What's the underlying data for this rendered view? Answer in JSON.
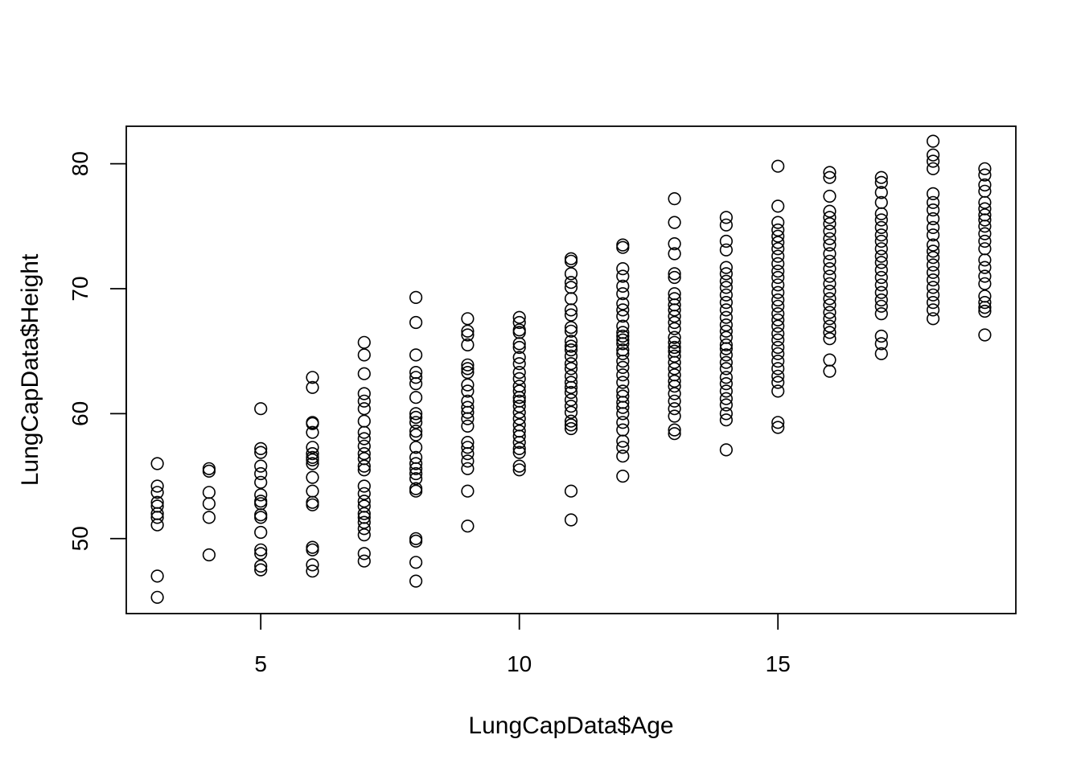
{
  "chart_data": {
    "type": "scatter",
    "title": "",
    "xlabel": "LungCapData$Age",
    "ylabel": "LungCapData$Height",
    "xlim": [
      2.4,
      19.6
    ],
    "ylim": [
      44,
      83
    ],
    "xticks": [
      5,
      10,
      15
    ],
    "yticks": [
      50,
      60,
      70,
      80
    ],
    "grid": false,
    "legend": "none",
    "marker": "open-circle",
    "points": [
      [
        3,
        56.0
      ],
      [
        3,
        54.2
      ],
      [
        3,
        53.7
      ],
      [
        3,
        52.9
      ],
      [
        3,
        52.6
      ],
      [
        3,
        52.0
      ],
      [
        3,
        51.7
      ],
      [
        3,
        51.1
      ],
      [
        3,
        47.0
      ],
      [
        3,
        45.3
      ],
      [
        4,
        55.6
      ],
      [
        4,
        55.4
      ],
      [
        4,
        53.7
      ],
      [
        4,
        52.8
      ],
      [
        4,
        51.7
      ],
      [
        4,
        48.7
      ],
      [
        5,
        60.4
      ],
      [
        5,
        57.2
      ],
      [
        5,
        56.9
      ],
      [
        5,
        55.8
      ],
      [
        5,
        55.2
      ],
      [
        5,
        54.5
      ],
      [
        5,
        53.5
      ],
      [
        5,
        53.0
      ],
      [
        5,
        52.8
      ],
      [
        5,
        51.9
      ],
      [
        5,
        51.7
      ],
      [
        5,
        50.5
      ],
      [
        5,
        49.1
      ],
      [
        5,
        48.8
      ],
      [
        5,
        47.8
      ],
      [
        5,
        47.5
      ],
      [
        6,
        62.9
      ],
      [
        6,
        62.1
      ],
      [
        6,
        59.3
      ],
      [
        6,
        59.2
      ],
      [
        6,
        58.5
      ],
      [
        6,
        57.3
      ],
      [
        6,
        56.8
      ],
      [
        6,
        56.5
      ],
      [
        6,
        56.3
      ],
      [
        6,
        56.0
      ],
      [
        6,
        54.9
      ],
      [
        6,
        53.8
      ],
      [
        6,
        52.9
      ],
      [
        6,
        52.7
      ],
      [
        6,
        49.3
      ],
      [
        6,
        49.1
      ],
      [
        6,
        47.9
      ],
      [
        6,
        47.4
      ],
      [
        7,
        65.7
      ],
      [
        7,
        64.7
      ],
      [
        7,
        63.2
      ],
      [
        7,
        61.6
      ],
      [
        7,
        61.0
      ],
      [
        7,
        60.4
      ],
      [
        7,
        59.4
      ],
      [
        7,
        58.5
      ],
      [
        7,
        58.0
      ],
      [
        7,
        57.4
      ],
      [
        7,
        56.8
      ],
      [
        7,
        56.4
      ],
      [
        7,
        55.8
      ],
      [
        7,
        55.5
      ],
      [
        7,
        54.2
      ],
      [
        7,
        53.6
      ],
      [
        7,
        53.0
      ],
      [
        7,
        52.6
      ],
      [
        7,
        52.0
      ],
      [
        7,
        51.7
      ],
      [
        7,
        51.3
      ],
      [
        7,
        50.8
      ],
      [
        7,
        50.3
      ],
      [
        7,
        48.8
      ],
      [
        7,
        48.2
      ],
      [
        8,
        69.3
      ],
      [
        8,
        67.3
      ],
      [
        8,
        64.7
      ],
      [
        8,
        63.3
      ],
      [
        8,
        62.9
      ],
      [
        8,
        62.4
      ],
      [
        8,
        61.3
      ],
      [
        8,
        60.0
      ],
      [
        8,
        59.7
      ],
      [
        8,
        59.3
      ],
      [
        8,
        58.6
      ],
      [
        8,
        58.3
      ],
      [
        8,
        57.3
      ],
      [
        8,
        56.5
      ],
      [
        8,
        56.0
      ],
      [
        8,
        55.6
      ],
      [
        8,
        55.2
      ],
      [
        8,
        54.8
      ],
      [
        8,
        54.0
      ],
      [
        8,
        53.8
      ],
      [
        8,
        50.0
      ],
      [
        8,
        49.8
      ],
      [
        8,
        48.1
      ],
      [
        8,
        46.6
      ],
      [
        9,
        67.6
      ],
      [
        9,
        66.6
      ],
      [
        9,
        66.3
      ],
      [
        9,
        65.5
      ],
      [
        9,
        63.9
      ],
      [
        9,
        63.6
      ],
      [
        9,
        63.3
      ],
      [
        9,
        62.3
      ],
      [
        9,
        61.8
      ],
      [
        9,
        61.0
      ],
      [
        9,
        60.5
      ],
      [
        9,
        60.1
      ],
      [
        9,
        59.6
      ],
      [
        9,
        59.0
      ],
      [
        9,
        57.7
      ],
      [
        9,
        57.3
      ],
      [
        9,
        56.8
      ],
      [
        9,
        56.2
      ],
      [
        9,
        55.6
      ],
      [
        9,
        53.8
      ],
      [
        9,
        51.0
      ],
      [
        10,
        67.7
      ],
      [
        10,
        67.3
      ],
      [
        10,
        66.7
      ],
      [
        10,
        66.5
      ],
      [
        10,
        65.6
      ],
      [
        10,
        65.3
      ],
      [
        10,
        64.5
      ],
      [
        10,
        64.0
      ],
      [
        10,
        63.3
      ],
      [
        10,
        62.8
      ],
      [
        10,
        62.2
      ],
      [
        10,
        61.8
      ],
      [
        10,
        61.3
      ],
      [
        10,
        61.0
      ],
      [
        10,
        60.6
      ],
      [
        10,
        60.1
      ],
      [
        10,
        59.6
      ],
      [
        10,
        59.1
      ],
      [
        10,
        58.6
      ],
      [
        10,
        58.2
      ],
      [
        10,
        57.7
      ],
      [
        10,
        57.2
      ],
      [
        10,
        56.9
      ],
      [
        10,
        55.8
      ],
      [
        10,
        55.5
      ],
      [
        11,
        72.4
      ],
      [
        11,
        72.2
      ],
      [
        11,
        71.2
      ],
      [
        11,
        70.5
      ],
      [
        11,
        70.1
      ],
      [
        11,
        69.2
      ],
      [
        11,
        68.3
      ],
      [
        11,
        67.9
      ],
      [
        11,
        66.9
      ],
      [
        11,
        66.6
      ],
      [
        11,
        65.8
      ],
      [
        11,
        65.4
      ],
      [
        11,
        65.1
      ],
      [
        11,
        64.6
      ],
      [
        11,
        64.0
      ],
      [
        11,
        63.6
      ],
      [
        11,
        63.0
      ],
      [
        11,
        62.5
      ],
      [
        11,
        62.1
      ],
      [
        11,
        61.7
      ],
      [
        11,
        61.1
      ],
      [
        11,
        60.6
      ],
      [
        11,
        60.1
      ],
      [
        11,
        59.4
      ],
      [
        11,
        59.1
      ],
      [
        11,
        58.8
      ],
      [
        11,
        53.8
      ],
      [
        11,
        51.5
      ],
      [
        12,
        73.5
      ],
      [
        12,
        73.3
      ],
      [
        12,
        71.6
      ],
      [
        12,
        71.0
      ],
      [
        12,
        70.2
      ],
      [
        12,
        69.6
      ],
      [
        12,
        68.8
      ],
      [
        12,
        68.3
      ],
      [
        12,
        67.8
      ],
      [
        12,
        67.0
      ],
      [
        12,
        66.5
      ],
      [
        12,
        66.2
      ],
      [
        12,
        65.9
      ],
      [
        12,
        65.6
      ],
      [
        12,
        65.1
      ],
      [
        12,
        64.8
      ],
      [
        12,
        64.2
      ],
      [
        12,
        63.7
      ],
      [
        12,
        63.1
      ],
      [
        12,
        62.5
      ],
      [
        12,
        61.8
      ],
      [
        12,
        61.4
      ],
      [
        12,
        60.9
      ],
      [
        12,
        60.5
      ],
      [
        12,
        60.0
      ],
      [
        12,
        59.3
      ],
      [
        12,
        58.7
      ],
      [
        12,
        57.8
      ],
      [
        12,
        57.3
      ],
      [
        12,
        56.6
      ],
      [
        12,
        55.0
      ],
      [
        13,
        77.2
      ],
      [
        13,
        75.3
      ],
      [
        13,
        73.6
      ],
      [
        13,
        72.8
      ],
      [
        13,
        71.2
      ],
      [
        13,
        70.9
      ],
      [
        13,
        69.6
      ],
      [
        13,
        69.2
      ],
      [
        13,
        68.7
      ],
      [
        13,
        68.3
      ],
      [
        13,
        67.8
      ],
      [
        13,
        67.3
      ],
      [
        13,
        66.8
      ],
      [
        13,
        66.1
      ],
      [
        13,
        65.7
      ],
      [
        13,
        65.3
      ],
      [
        13,
        65.0
      ],
      [
        13,
        64.6
      ],
      [
        13,
        64.1
      ],
      [
        13,
        63.6
      ],
      [
        13,
        63.1
      ],
      [
        13,
        62.6
      ],
      [
        13,
        62.2
      ],
      [
        13,
        61.6
      ],
      [
        13,
        61.0
      ],
      [
        13,
        60.4
      ],
      [
        13,
        59.8
      ],
      [
        13,
        58.7
      ],
      [
        13,
        58.4
      ],
      [
        14,
        75.7
      ],
      [
        14,
        75.1
      ],
      [
        14,
        73.8
      ],
      [
        14,
        73.1
      ],
      [
        14,
        71.7
      ],
      [
        14,
        71.2
      ],
      [
        14,
        70.6
      ],
      [
        14,
        70.1
      ],
      [
        14,
        69.5
      ],
      [
        14,
        68.9
      ],
      [
        14,
        68.3
      ],
      [
        14,
        67.7
      ],
      [
        14,
        67.1
      ],
      [
        14,
        66.6
      ],
      [
        14,
        66.1
      ],
      [
        14,
        65.5
      ],
      [
        14,
        65.2
      ],
      [
        14,
        64.7
      ],
      [
        14,
        64.1
      ],
      [
        14,
        63.6
      ],
      [
        14,
        62.9
      ],
      [
        14,
        62.4
      ],
      [
        14,
        61.8
      ],
      [
        14,
        61.2
      ],
      [
        14,
        60.7
      ],
      [
        14,
        60.0
      ],
      [
        14,
        59.5
      ],
      [
        14,
        57.1
      ],
      [
        15,
        79.8
      ],
      [
        15,
        76.6
      ],
      [
        15,
        75.3
      ],
      [
        15,
        74.7
      ],
      [
        15,
        74.2
      ],
      [
        15,
        73.7
      ],
      [
        15,
        73.2
      ],
      [
        15,
        72.6
      ],
      [
        15,
        72.0
      ],
      [
        15,
        71.4
      ],
      [
        15,
        70.9
      ],
      [
        15,
        70.3
      ],
      [
        15,
        69.7
      ],
      [
        15,
        69.1
      ],
      [
        15,
        68.6
      ],
      [
        15,
        68.0
      ],
      [
        15,
        67.5
      ],
      [
        15,
        67.0
      ],
      [
        15,
        66.4
      ],
      [
        15,
        65.9
      ],
      [
        15,
        65.3
      ],
      [
        15,
        64.8
      ],
      [
        15,
        64.2
      ],
      [
        15,
        63.6
      ],
      [
        15,
        63.0
      ],
      [
        15,
        62.5
      ],
      [
        15,
        61.8
      ],
      [
        15,
        59.3
      ],
      [
        15,
        58.9
      ],
      [
        16,
        79.3
      ],
      [
        16,
        78.9
      ],
      [
        16,
        77.4
      ],
      [
        16,
        76.2
      ],
      [
        16,
        75.7
      ],
      [
        16,
        75.2
      ],
      [
        16,
        74.6
      ],
      [
        16,
        74.0
      ],
      [
        16,
        73.5
      ],
      [
        16,
        72.8
      ],
      [
        16,
        72.2
      ],
      [
        16,
        71.6
      ],
      [
        16,
        71.0
      ],
      [
        16,
        70.4
      ],
      [
        16,
        69.8
      ],
      [
        16,
        69.2
      ],
      [
        16,
        68.7
      ],
      [
        16,
        68.1
      ],
      [
        16,
        67.6
      ],
      [
        16,
        67.0
      ],
      [
        16,
        66.5
      ],
      [
        16,
        66.0
      ],
      [
        16,
        64.3
      ],
      [
        16,
        63.4
      ],
      [
        17,
        78.9
      ],
      [
        17,
        78.5
      ],
      [
        17,
        77.7
      ],
      [
        17,
        76.9
      ],
      [
        17,
        76.0
      ],
      [
        17,
        75.5
      ],
      [
        17,
        74.9
      ],
      [
        17,
        74.3
      ],
      [
        17,
        73.8
      ],
      [
        17,
        73.2
      ],
      [
        17,
        72.6
      ],
      [
        17,
        72.1
      ],
      [
        17,
        71.5
      ],
      [
        17,
        70.9
      ],
      [
        17,
        70.3
      ],
      [
        17,
        69.7
      ],
      [
        17,
        69.1
      ],
      [
        17,
        68.6
      ],
      [
        17,
        68.0
      ],
      [
        17,
        66.2
      ],
      [
        17,
        65.6
      ],
      [
        17,
        64.8
      ],
      [
        18,
        81.8
      ],
      [
        18,
        80.7
      ],
      [
        18,
        80.2
      ],
      [
        18,
        79.6
      ],
      [
        18,
        77.6
      ],
      [
        18,
        76.9
      ],
      [
        18,
        76.3
      ],
      [
        18,
        75.6
      ],
      [
        18,
        74.9
      ],
      [
        18,
        74.3
      ],
      [
        18,
        73.5
      ],
      [
        18,
        73.0
      ],
      [
        18,
        72.5
      ],
      [
        18,
        71.9
      ],
      [
        18,
        71.3
      ],
      [
        18,
        70.7
      ],
      [
        18,
        70.1
      ],
      [
        18,
        69.5
      ],
      [
        18,
        68.9
      ],
      [
        18,
        68.3
      ],
      [
        18,
        67.6
      ],
      [
        19,
        79.6
      ],
      [
        19,
        79.1
      ],
      [
        19,
        78.3
      ],
      [
        19,
        77.8
      ],
      [
        19,
        76.9
      ],
      [
        19,
        76.4
      ],
      [
        19,
        75.9
      ],
      [
        19,
        75.5
      ],
      [
        19,
        75.0
      ],
      [
        19,
        74.4
      ],
      [
        19,
        73.8
      ],
      [
        19,
        73.2
      ],
      [
        19,
        72.3
      ],
      [
        19,
        71.7
      ],
      [
        19,
        71.0
      ],
      [
        19,
        70.4
      ],
      [
        19,
        69.4
      ],
      [
        19,
        68.9
      ],
      [
        19,
        68.5
      ],
      [
        19,
        68.2
      ],
      [
        19,
        66.3
      ]
    ]
  }
}
